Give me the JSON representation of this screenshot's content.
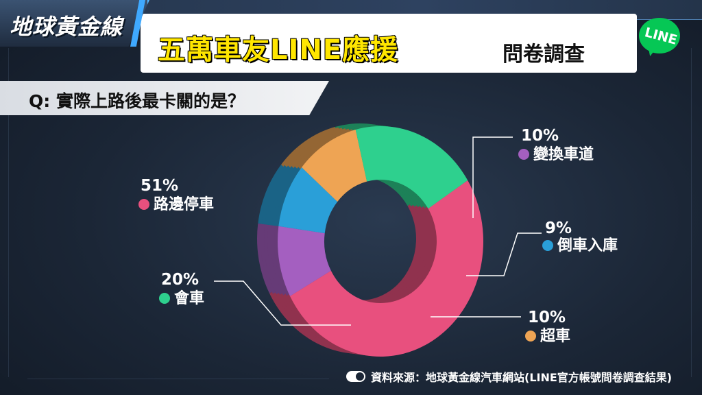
{
  "header": {
    "logo_text": "地球黃金線",
    "title_main": "五萬車友LINE應援",
    "title_sub": "問卷調查",
    "badge_text": "LINE"
  },
  "question": "Q: 實際上路後最卡關的是？",
  "source": "資料來源：地球黃金線汽車網站(LINE官方帳號問卷調查結果)",
  "colors": {
    "accent_yellow": "#ffe600",
    "line_green": "#06c755"
  },
  "chart_data": {
    "type": "pie",
    "style": "donut-3d",
    "categories": [
      "路邊停車",
      "變換車道",
      "倒車入庫",
      "超車",
      "會車"
    ],
    "values": [
      51,
      10,
      9,
      10,
      20
    ],
    "labels": [
      "51%",
      "10%",
      "9%",
      "10%",
      "20%"
    ],
    "colors": [
      "#e8507e",
      "#a45fc0",
      "#2a9fd8",
      "#eea454",
      "#2ed08e"
    ],
    "legend": "callouts"
  }
}
